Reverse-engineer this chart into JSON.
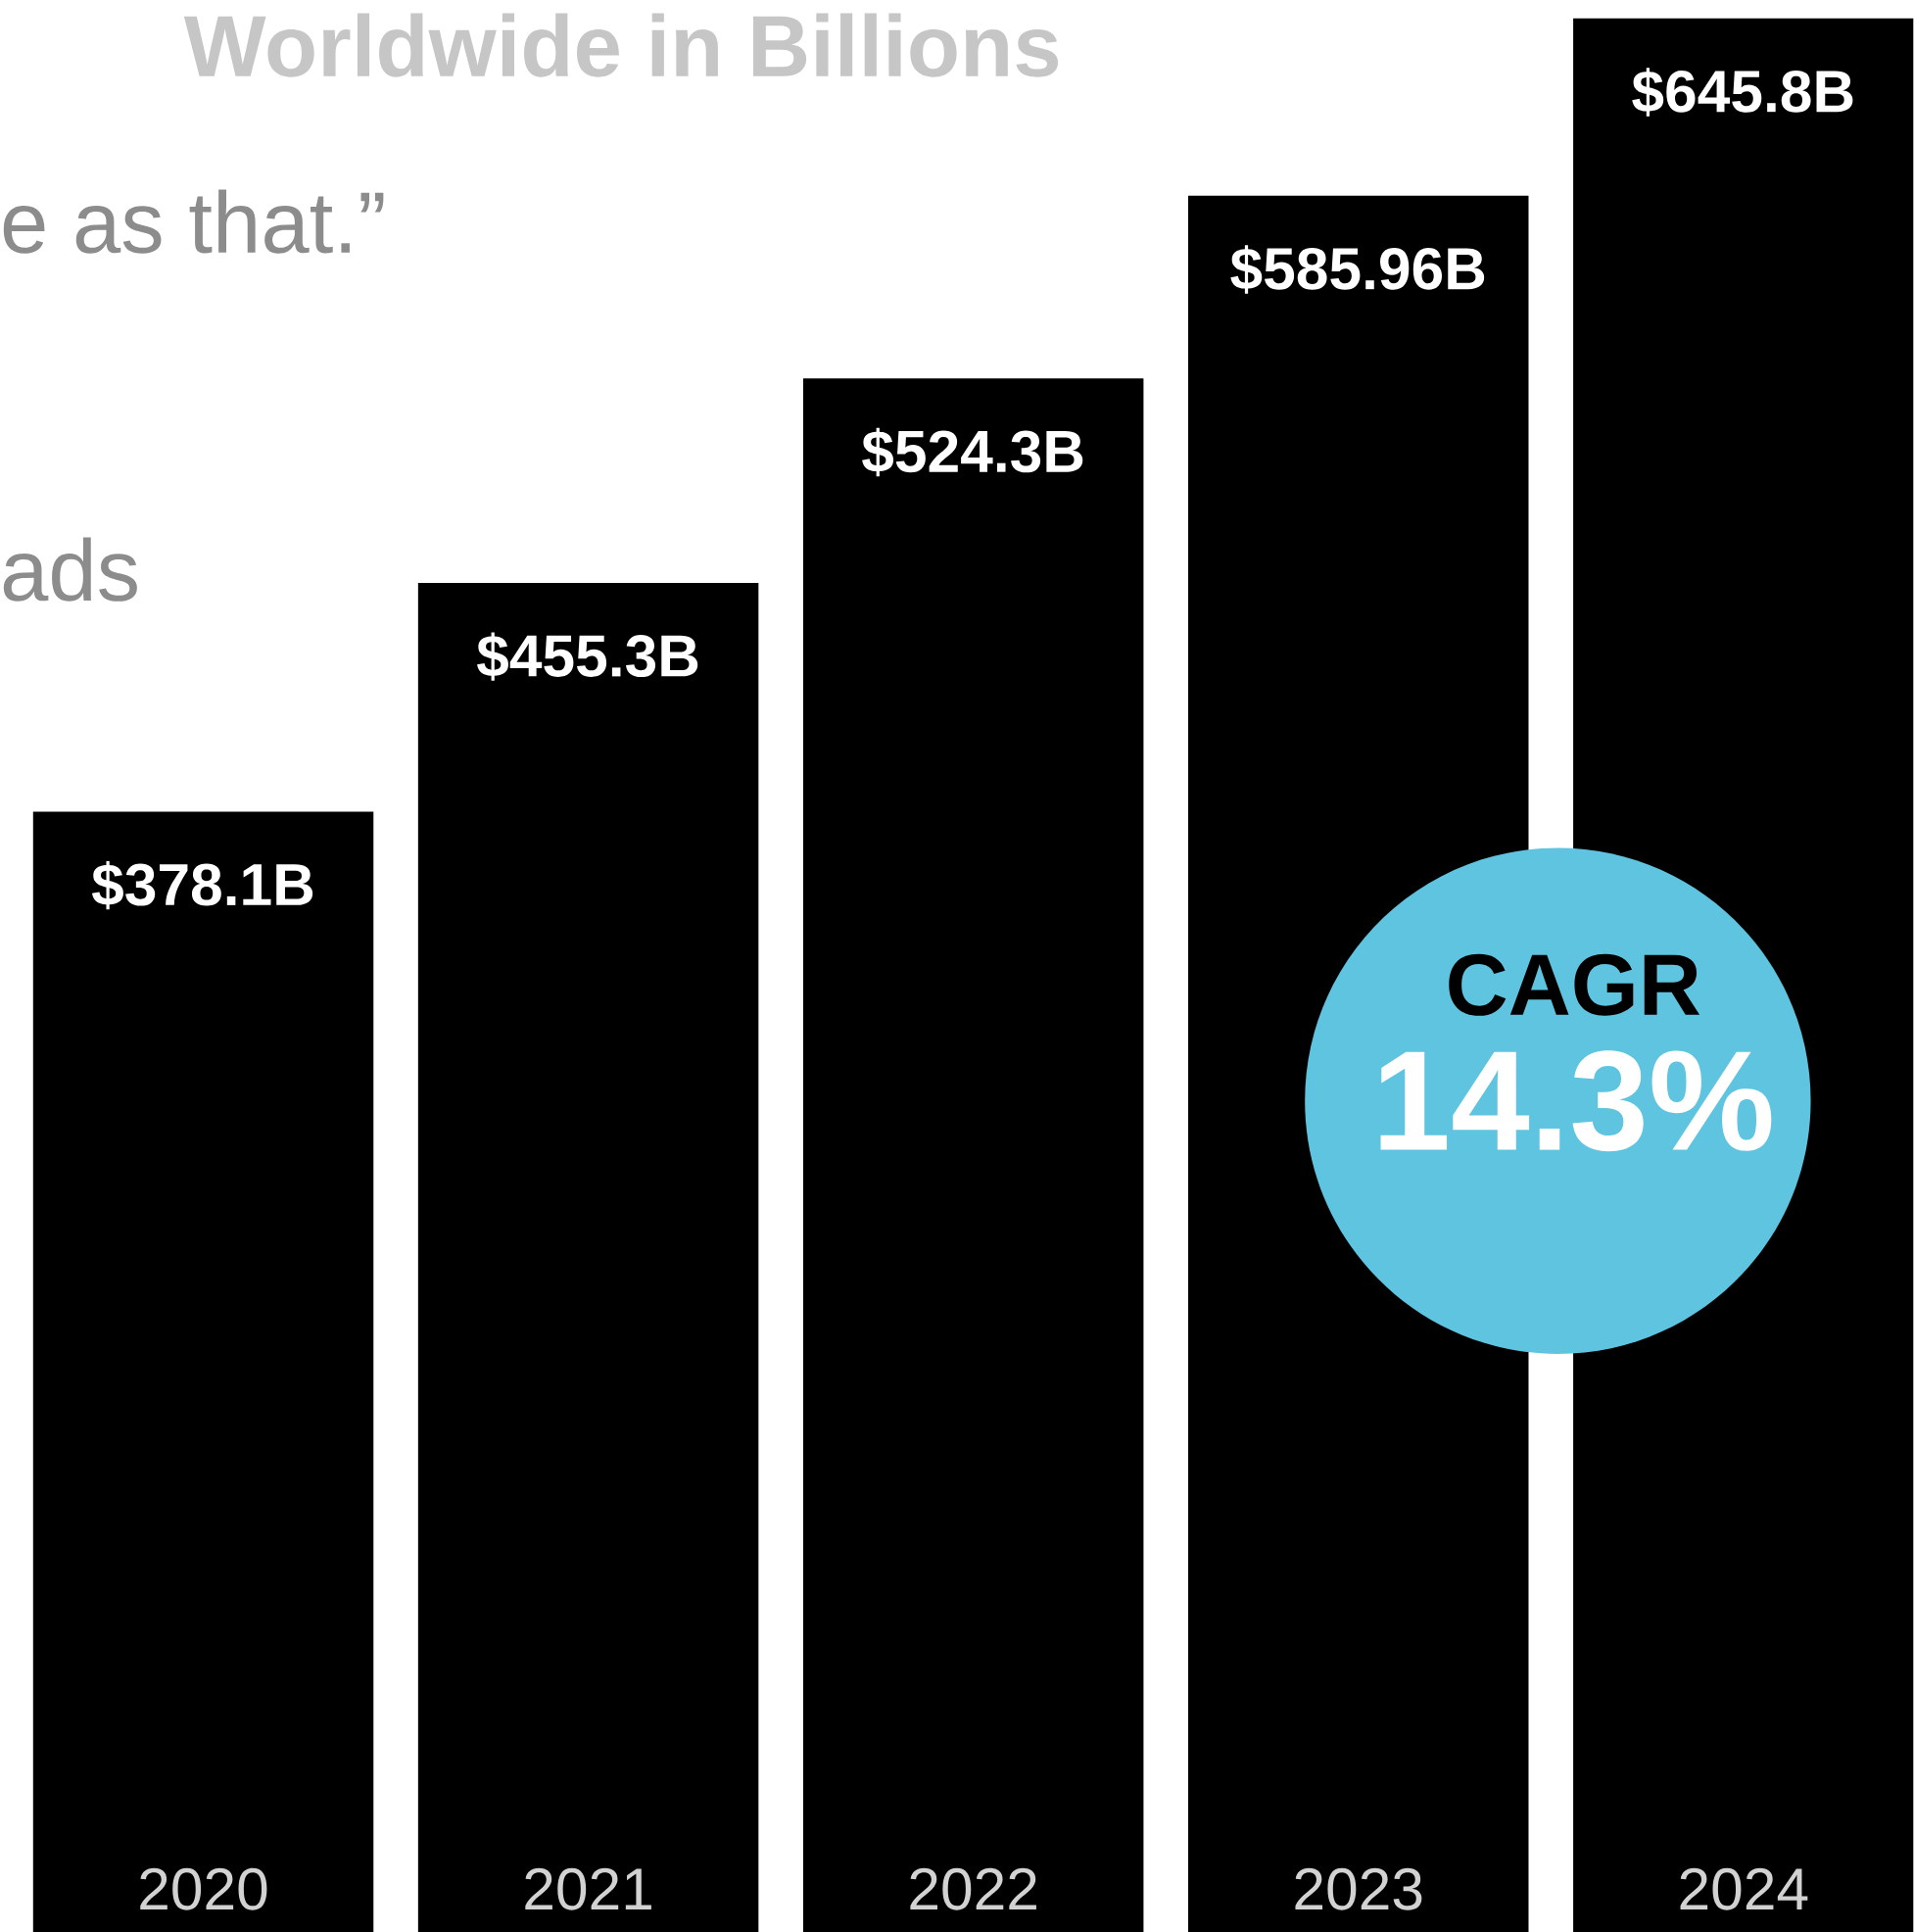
{
  "chart_data": {
    "type": "bar",
    "title": "Worldwide in Billions",
    "categories": [
      "2020",
      "2021",
      "2022",
      "2023",
      "2024"
    ],
    "values": [
      378.1,
      455.3,
      524.3,
      585.96,
      645.8
    ],
    "color": "#000000",
    "value_labels": [
      "$378.1B",
      "$455.3B",
      "$524.3B",
      "$585.96B",
      "$645.8B"
    ],
    "annotations": [
      "e as that.”",
      "ads",
      "CAGR",
      "14.3%"
    ]
  }
}
